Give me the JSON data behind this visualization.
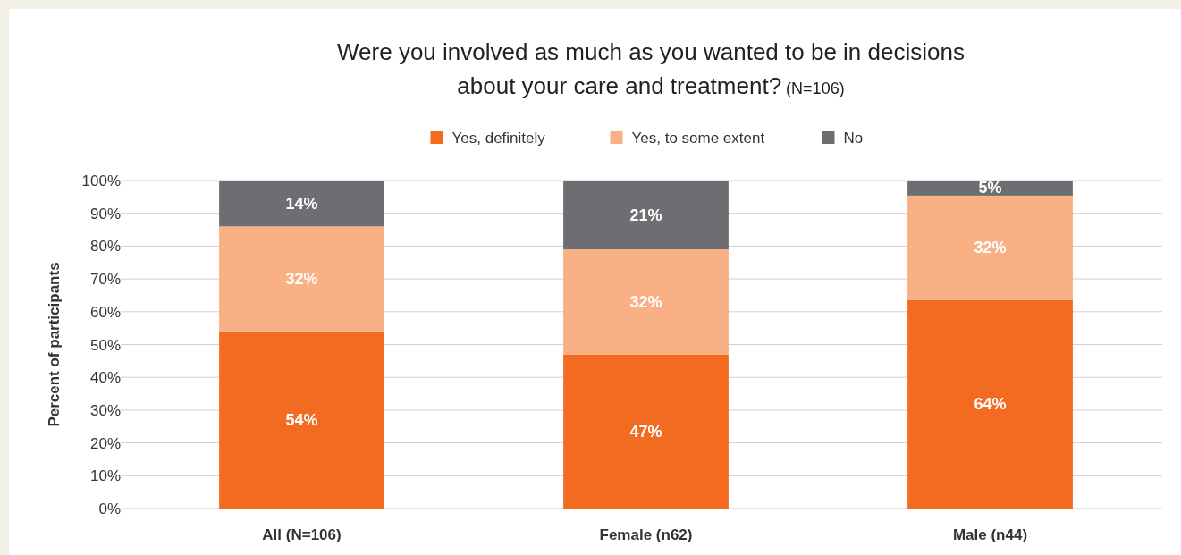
{
  "chart_data": {
    "type": "bar",
    "title": "Were you involved as much as you wanted to be in decisions about your care and treatment?",
    "subtitle": "(N=106)",
    "ylabel": "Percent of participants",
    "categories": [
      "All (N=106)",
      "Female (n62)",
      "Male (n44)"
    ],
    "stacked": true,
    "legend": "top",
    "grid": "y",
    "ylim": [
      0,
      100
    ],
    "yticks": [
      {
        "value": 0,
        "label": "0%"
      },
      {
        "value": 10,
        "label": "10%"
      },
      {
        "value": 20,
        "label": "20%"
      },
      {
        "value": 30,
        "label": "30%"
      },
      {
        "value": 40,
        "label": "40%"
      },
      {
        "value": 50,
        "label": "50%"
      },
      {
        "value": 60,
        "label": "60%"
      },
      {
        "value": 70,
        "label": "70%"
      },
      {
        "value": 80,
        "label": "80%"
      },
      {
        "value": 90,
        "label": "90%"
      },
      {
        "value": 100,
        "label": "100%"
      }
    ],
    "series": [
      {
        "name": "Yes, definitely",
        "color": "#f26b21",
        "values": [
          54,
          47,
          63.6
        ],
        "value_labels": [
          "54%",
          "47%",
          "64%"
        ]
      },
      {
        "name": "Yes, to some extent",
        "color": "#f9b085",
        "values": [
          32,
          32,
          31.8
        ],
        "value_labels": [
          "32%",
          "32%",
          "32%"
        ]
      },
      {
        "name": "No",
        "color": "#6d6e71",
        "values": [
          14,
          21,
          4.6
        ],
        "value_labels": [
          "14%",
          "21%",
          "5%"
        ]
      }
    ]
  }
}
